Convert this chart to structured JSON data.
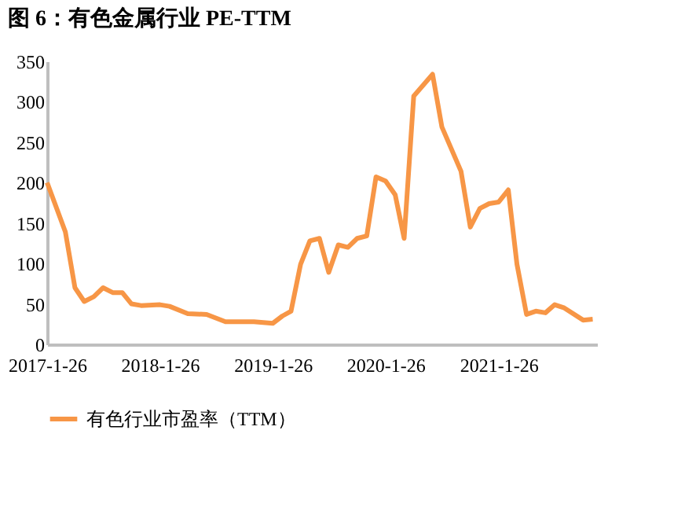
{
  "chart_data": {
    "type": "line",
    "title": "图 6：有色金属行业 PE-TTM",
    "x": [
      "2017-01-26",
      "2017-03-26",
      "2017-04-26",
      "2017-05-26",
      "2017-06-26",
      "2017-07-26",
      "2017-08-26",
      "2017-09-26",
      "2017-10-26",
      "2017-11-26",
      "2018-01-26",
      "2018-02-26",
      "2018-04-26",
      "2018-06-26",
      "2018-08-26",
      "2018-11-26",
      "2019-01-26",
      "2019-02-26",
      "2019-03-26",
      "2019-04-26",
      "2019-05-26",
      "2019-06-26",
      "2019-07-26",
      "2019-08-26",
      "2019-09-26",
      "2019-10-26",
      "2019-11-26",
      "2019-12-26",
      "2020-01-26",
      "2020-02-26",
      "2020-03-26",
      "2020-04-26",
      "2020-06-26",
      "2020-07-26",
      "2020-09-26",
      "2020-10-26",
      "2020-11-26",
      "2020-12-26",
      "2021-01-26",
      "2021-02-26",
      "2021-03-26",
      "2021-04-26",
      "2021-05-26",
      "2021-06-26",
      "2021-07-26",
      "2021-08-26",
      "2021-10-26",
      "2021-11-26"
    ],
    "series": [
      {
        "name": "有色行业市盈率（TTM）",
        "color": "#f79646",
        "values": [
          200,
          139,
          70,
          53,
          59,
          70,
          64,
          64,
          50,
          48,
          49,
          47,
          38,
          37,
          28,
          28,
          26,
          35,
          41,
          99,
          128,
          131,
          89,
          123,
          120,
          131,
          134,
          207,
          202,
          185,
          131,
          307,
          334,
          269,
          214,
          145,
          168,
          174,
          176,
          191,
          99,
          37,
          41,
          39,
          49,
          45,
          30,
          31
        ]
      }
    ],
    "xlim": [
      "2017-01-26",
      "2021-12-10"
    ],
    "xticks": [
      {
        "value": "2017-01-26",
        "label": "2017-1-26"
      },
      {
        "value": "2018-01-26",
        "label": "2018-1-26"
      },
      {
        "value": "2019-01-26",
        "label": "2019-1-26"
      },
      {
        "value": "2020-01-26",
        "label": "2020-1-26"
      },
      {
        "value": "2021-01-26",
        "label": "2021-1-26"
      }
    ],
    "ylim": [
      0,
      350
    ],
    "yticks": [
      0,
      50,
      100,
      150,
      200,
      250,
      300,
      350
    ],
    "legend": "bottom",
    "grid": false,
    "marker": "none",
    "line_style": "solid"
  }
}
